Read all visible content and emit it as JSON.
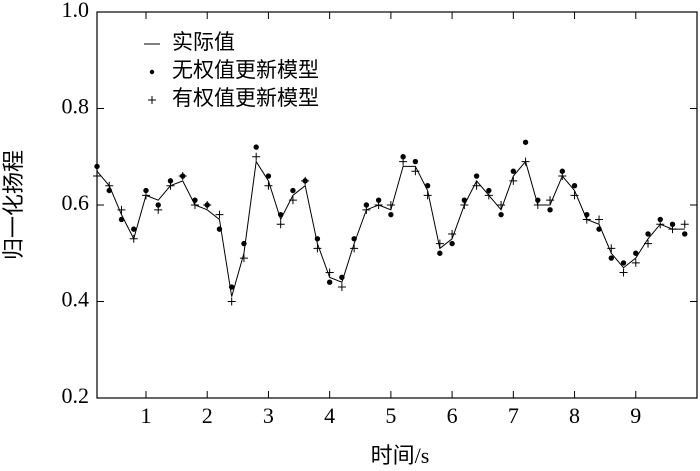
{
  "chart_data": {
    "type": "line",
    "x_label": "时间/s",
    "y_label": "归一化扬程",
    "x": [
      0.2,
      0.4,
      0.6,
      0.8,
      1.0,
      1.2,
      1.4,
      1.6,
      1.8,
      2.0,
      2.2,
      2.4,
      2.6,
      2.8,
      3.0,
      3.2,
      3.4,
      3.6,
      3.8,
      4.0,
      4.2,
      4.4,
      4.6,
      4.8,
      5.0,
      5.2,
      5.4,
      5.6,
      5.8,
      6.0,
      6.2,
      6.4,
      6.6,
      6.8,
      7.0,
      7.2,
      7.4,
      7.6,
      7.8,
      8.0,
      8.2,
      8.4,
      8.6,
      8.8,
      9.0,
      9.2,
      9.4,
      9.6,
      9.8
    ],
    "series": [
      {
        "name": "实际值",
        "color": "#000000",
        "marker": "line",
        "values": [
          0.67,
          0.64,
          0.58,
          0.53,
          0.62,
          0.61,
          0.64,
          0.65,
          0.6,
          0.59,
          0.57,
          0.41,
          0.5,
          0.69,
          0.65,
          0.57,
          0.62,
          0.64,
          0.52,
          0.45,
          0.44,
          0.52,
          0.59,
          0.6,
          0.59,
          0.68,
          0.68,
          0.63,
          0.51,
          0.53,
          0.6,
          0.65,
          0.62,
          0.59,
          0.66,
          0.69,
          0.6,
          0.6,
          0.66,
          0.63,
          0.57,
          0.56,
          0.5,
          0.47,
          0.49,
          0.53,
          0.56,
          0.55,
          0.55
        ]
      },
      {
        "name": "无权值更新模型",
        "color": "#000000",
        "marker": "dot",
        "values": [
          0.68,
          0.63,
          0.57,
          0.55,
          0.63,
          0.6,
          0.65,
          0.66,
          0.61,
          0.6,
          0.55,
          0.43,
          0.52,
          0.72,
          0.66,
          0.58,
          0.63,
          0.65,
          0.53,
          0.44,
          0.45,
          0.53,
          0.6,
          0.61,
          0.58,
          0.7,
          0.69,
          0.64,
          0.5,
          0.52,
          0.61,
          0.66,
          0.63,
          0.58,
          0.67,
          0.73,
          0.61,
          0.59,
          0.67,
          0.64,
          0.58,
          0.55,
          0.49,
          0.48,
          0.5,
          0.54,
          0.57,
          0.56,
          0.54
        ]
      },
      {
        "name": "有权值更新模型",
        "color": "#000000",
        "marker": "plus",
        "values": [
          0.66,
          0.64,
          0.59,
          0.53,
          0.62,
          0.59,
          0.64,
          0.66,
          0.6,
          0.6,
          0.58,
          0.4,
          0.49,
          0.7,
          0.64,
          0.56,
          0.61,
          0.65,
          0.51,
          0.46,
          0.43,
          0.51,
          0.59,
          0.6,
          0.6,
          0.69,
          0.67,
          0.62,
          0.52,
          0.54,
          0.6,
          0.64,
          0.62,
          0.6,
          0.65,
          0.69,
          0.6,
          0.61,
          0.66,
          0.62,
          0.57,
          0.57,
          0.51,
          0.46,
          0.48,
          0.52,
          0.56,
          0.55,
          0.56
        ]
      }
    ],
    "xlim": [
      0.2,
      10
    ],
    "xticks": [
      1,
      2,
      3,
      4,
      5,
      6,
      7,
      8,
      9
    ],
    "ylim": [
      0.2,
      1.0
    ],
    "yticks": [
      0.2,
      0.4,
      0.6,
      0.8,
      {
        "value": 1.0,
        "label": "1.0"
      }
    ],
    "grid": false,
    "legend": "upper left"
  }
}
